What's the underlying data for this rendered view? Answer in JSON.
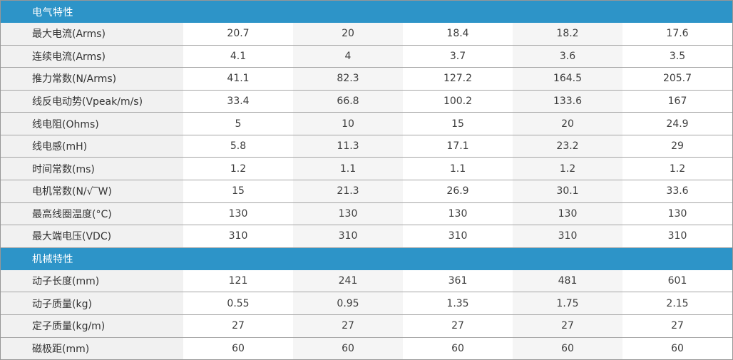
{
  "colors": {
    "section_header_bg": "#2D94C8",
    "section_header_text": "#ffffff",
    "label_column_bg": "#f1f1f1",
    "alt_column_bg": "#f5f5f5",
    "row_separator": "#a5a5a5",
    "outer_border": "#979797"
  },
  "table": {
    "sections": [
      {
        "title": "电气特性",
        "rows": [
          {
            "label": "最大电流(Arms)",
            "values": [
              "20.7",
              "20",
              "18.4",
              "18.2",
              "17.6"
            ]
          },
          {
            "label": "连续电流(Arms)",
            "values": [
              "4.1",
              "4",
              "3.7",
              "3.6",
              "3.5"
            ]
          },
          {
            "label": "推力常数(N/Arms)",
            "values": [
              "41.1",
              "82.3",
              "127.2",
              "164.5",
              "205.7"
            ]
          },
          {
            "label": "线反电动势(Vpeak/m/s)",
            "values": [
              "33.4",
              "66.8",
              "100.2",
              "133.6",
              "167"
            ]
          },
          {
            "label": "线电阻(Ohms)",
            "values": [
              "5",
              "10",
              "15",
              "20",
              "24.9"
            ]
          },
          {
            "label": "线电感(mH)",
            "values": [
              "5.8",
              "11.3",
              "17.1",
              "23.2",
              "29"
            ]
          },
          {
            "label": "时间常数(ms)",
            "values": [
              "1.2",
              "1.1",
              "1.1",
              "1.2",
              "1.2"
            ]
          },
          {
            "label": "电机常数(N/√‾W)",
            "values": [
              "15",
              "21.3",
              "26.9",
              "30.1",
              "33.6"
            ]
          },
          {
            "label": "最高线圈温度(°C)",
            "values": [
              "130",
              "130",
              "130",
              "130",
              "130"
            ]
          },
          {
            "label": "最大端电压(VDC)",
            "values": [
              "310",
              "310",
              "310",
              "310",
              "310"
            ]
          }
        ]
      },
      {
        "title": "机械特性",
        "rows": [
          {
            "label": "动子长度(mm)",
            "values": [
              "121",
              "241",
              "361",
              "481",
              "601"
            ]
          },
          {
            "label": "动子质量(kg)",
            "values": [
              "0.55",
              "0.95",
              "1.35",
              "1.75",
              "2.15"
            ]
          },
          {
            "label": "定子质量(kg/m)",
            "values": [
              "27",
              "27",
              "27",
              "27",
              "27"
            ]
          },
          {
            "label": "磁极距(mm)",
            "values": [
              "60",
              "60",
              "60",
              "60",
              "60"
            ]
          }
        ]
      }
    ]
  }
}
